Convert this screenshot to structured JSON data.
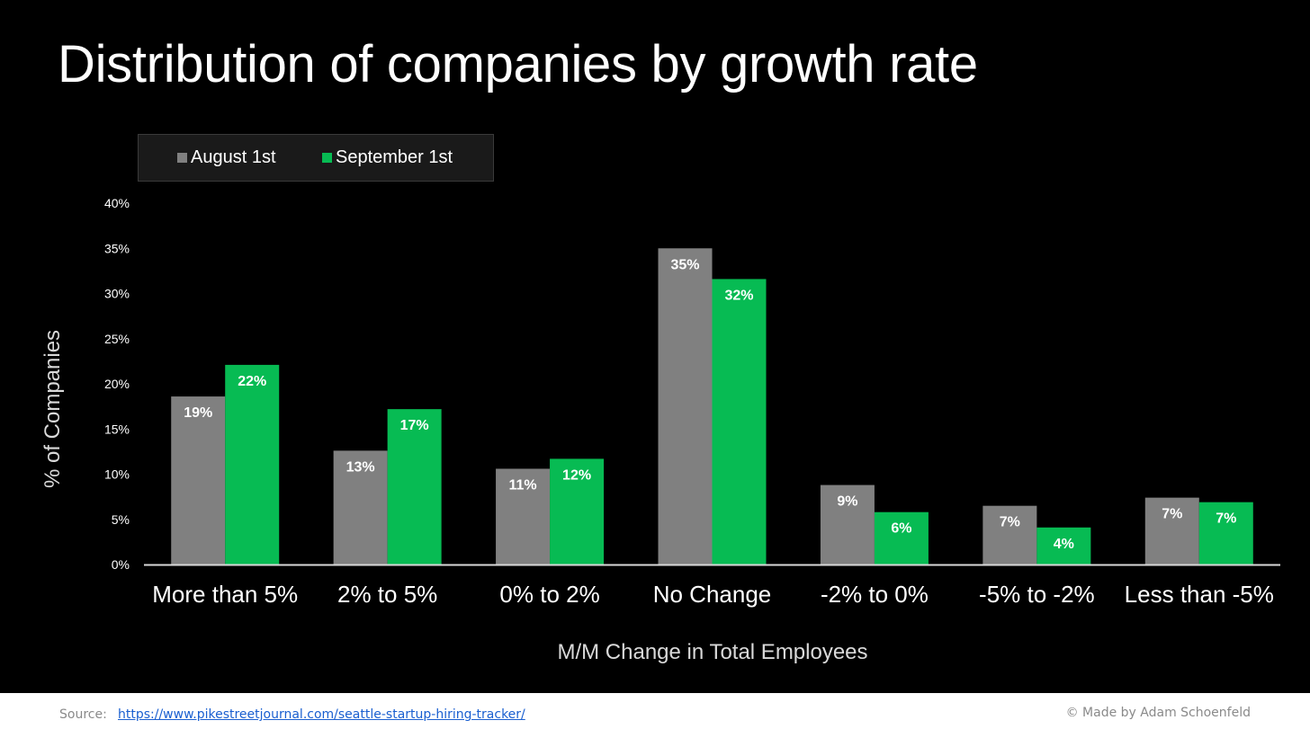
{
  "title": "Distribution of companies by growth rate",
  "colors": {
    "august": "#808080",
    "september": "#07bb53",
    "background": "#000000"
  },
  "chart_data": {
    "type": "bar",
    "title": "Distribution of companies by growth rate",
    "xlabel": "M/M Change in Total Employees",
    "ylabel": "% of Companies",
    "ylim": [
      0,
      40
    ],
    "yticks": [
      "0%",
      "5%",
      "10%",
      "15%",
      "20%",
      "25%",
      "30%",
      "35%",
      "40%"
    ],
    "grid": false,
    "legend_position": "top-left",
    "categories": [
      "More than 5%",
      "2% to 5%",
      "0% to 2%",
      "No Change",
      "-2% to 0%",
      "-5% to -2%",
      "Less than -5%"
    ],
    "series": [
      {
        "name": "August 1st",
        "values": [
          18.6,
          12.6,
          10.6,
          35.0,
          8.8,
          6.5,
          7.4
        ],
        "labels": [
          "19%",
          "13%",
          "11%",
          "35%",
          "9%",
          "7%",
          "7%"
        ]
      },
      {
        "name": "September 1st",
        "values": [
          22.1,
          17.2,
          11.7,
          31.6,
          5.8,
          4.1,
          6.9
        ],
        "labels": [
          "22%",
          "17%",
          "12%",
          "32%",
          "6%",
          "4%",
          "7%"
        ]
      }
    ]
  },
  "footer": {
    "source_label": "Source:",
    "source_url": "https://www.pikestreetjournal.com/seattle-startup-hiring-tracker/",
    "credit": "© Made by Adam Schoenfeld"
  }
}
